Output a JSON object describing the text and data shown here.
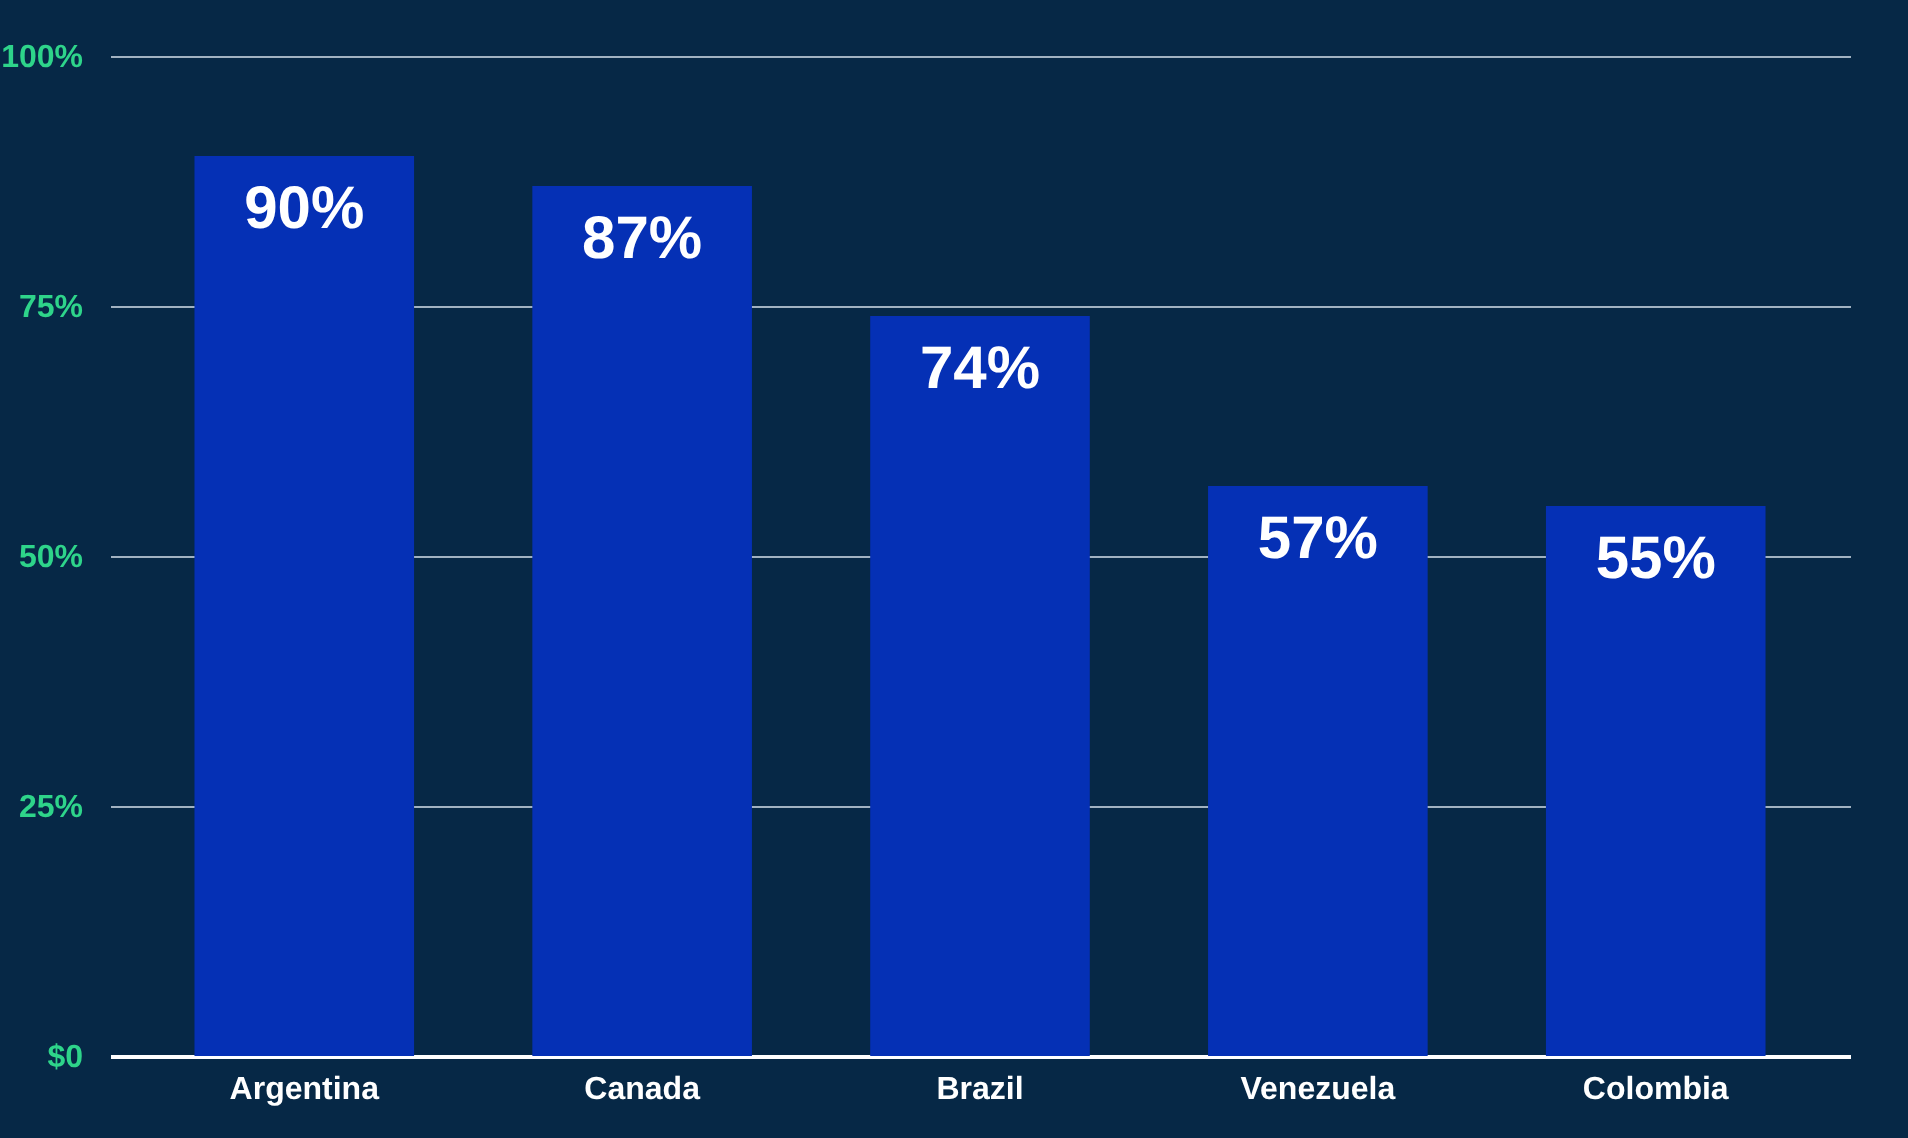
{
  "chart_data": {
    "type": "bar",
    "categories": [
      "Argentina",
      "Canada",
      "Brazil",
      "Venezuela",
      "Colombia"
    ],
    "values": [
      90,
      87,
      74,
      57,
      55
    ],
    "value_labels": [
      "90%",
      "87%",
      "74%",
      "57%",
      "55%"
    ],
    "color": "#0530b5",
    "ylim": [
      0,
      100
    ],
    "yticks": [
      {
        "value": 0,
        "label": "$0"
      },
      {
        "value": 25,
        "label": "25%"
      },
      {
        "value": 50,
        "label": "50%"
      },
      {
        "value": 75,
        "label": "75%"
      },
      {
        "value": 100,
        "label": "100%"
      }
    ],
    "grid": "y"
  }
}
